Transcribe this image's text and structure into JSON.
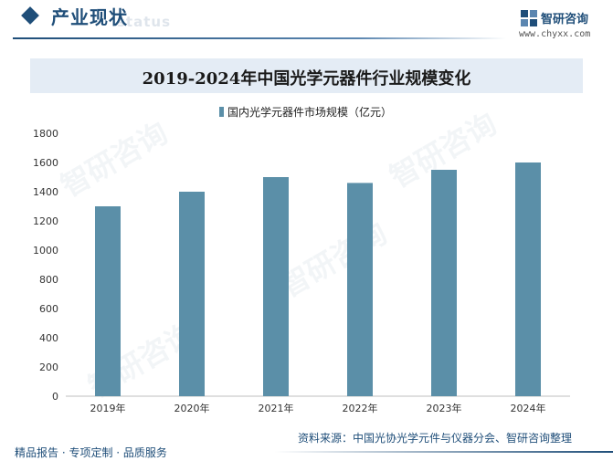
{
  "header": {
    "section_title": "产业现状",
    "section_subtitle": "status",
    "brand_name": "智研咨询",
    "brand_url": "www.chyxx.com"
  },
  "chart_data": {
    "type": "bar",
    "title": "2019-2024年中国光学元器件行业规模变化",
    "categories": [
      "2019年",
      "2020年",
      "2021年",
      "2022年",
      "2023年",
      "2024年"
    ],
    "series": [
      {
        "name": "国内光学元器件市场规模（亿元）",
        "values": [
          1300,
          1400,
          1500,
          1460,
          1550,
          1600
        ]
      }
    ],
    "ylim": [
      0,
      1800
    ],
    "yticks": [
      0,
      200,
      400,
      600,
      800,
      1000,
      1200,
      1400,
      1600,
      1800
    ],
    "grid": false,
    "legend": "top-center",
    "bar_color": "#5b8fa8"
  },
  "footer": {
    "source": "资料来源：中国光协光学元件与仪器分会、智研咨询整理",
    "slogan": "精品报告 · 专项定制 · 品质服务"
  }
}
